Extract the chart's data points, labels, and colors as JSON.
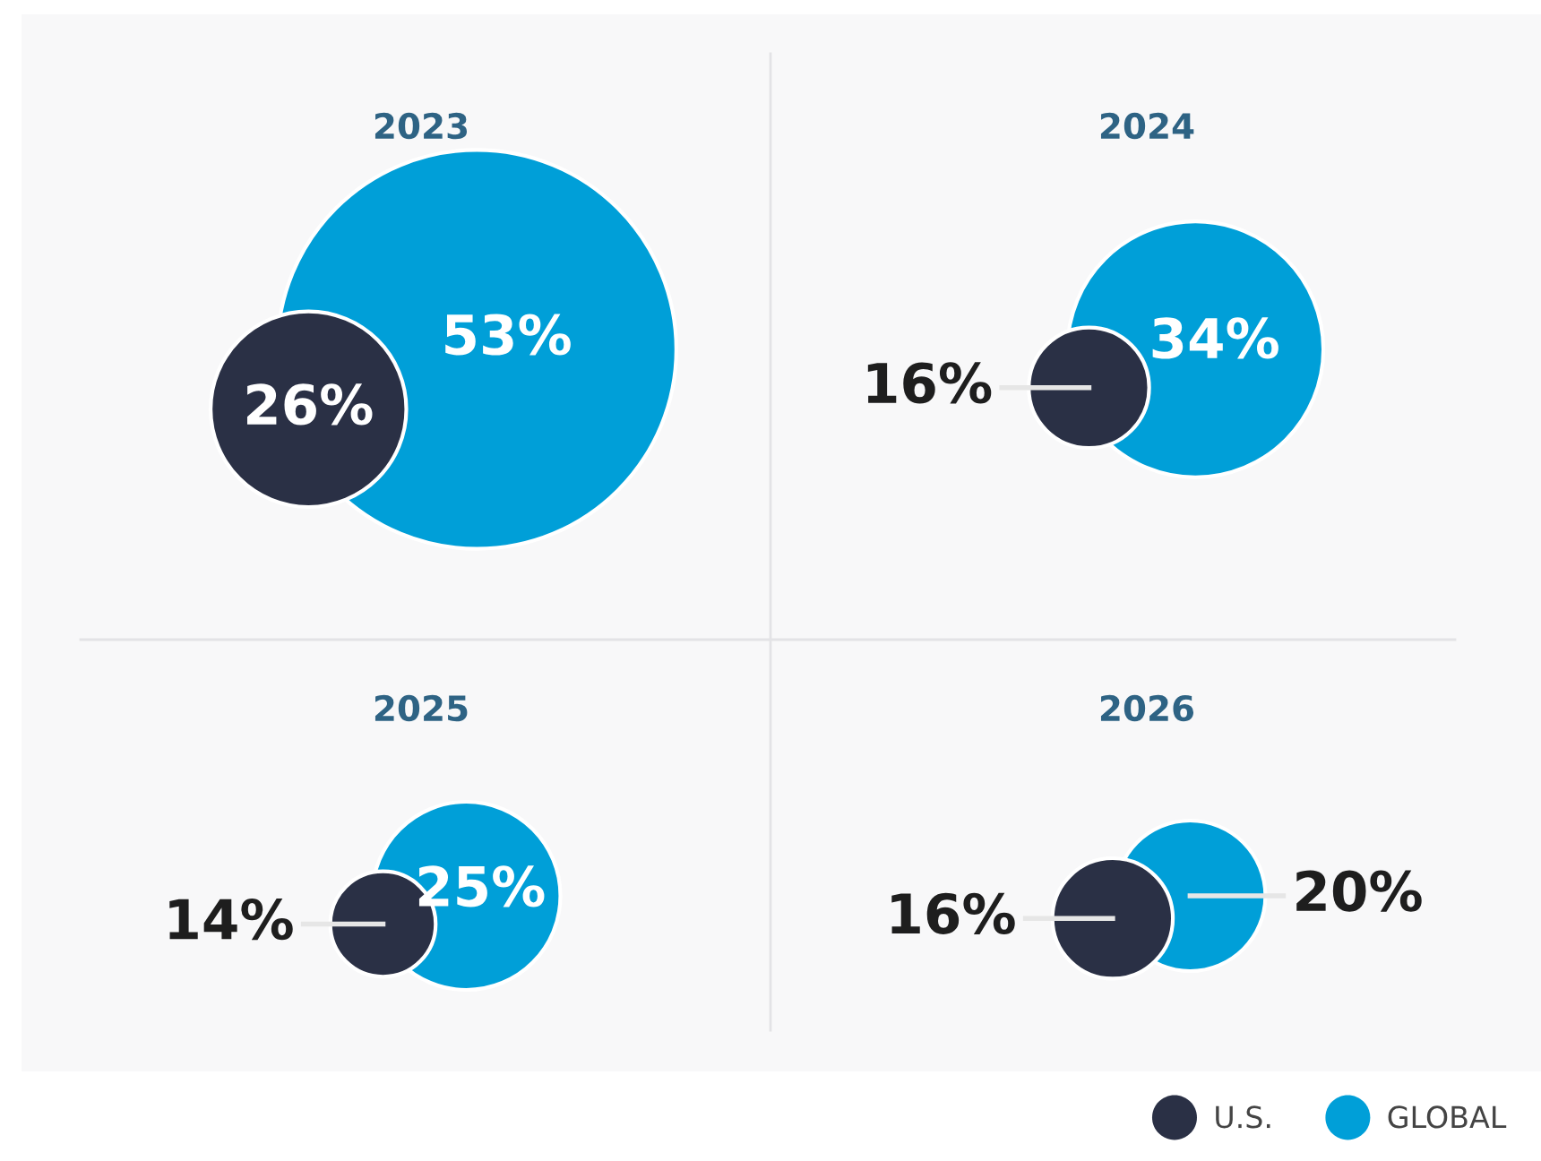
{
  "chart_data": {
    "type": "other",
    "categories": [
      "2023",
      "2024",
      "2025",
      "2026"
    ],
    "series": [
      {
        "name": "U.S.",
        "color": "#2a3045",
        "values": [
          26,
          16,
          14,
          16
        ],
        "value_labels": [
          "26%",
          "16%",
          "14%",
          "16%"
        ]
      },
      {
        "name": "GLOBAL",
        "color": "#009fd8",
        "values": [
          53,
          34,
          25,
          20
        ],
        "value_labels": [
          "53%",
          "34%",
          "25%",
          "20%"
        ]
      }
    ],
    "legend": "bottom right"
  }
}
